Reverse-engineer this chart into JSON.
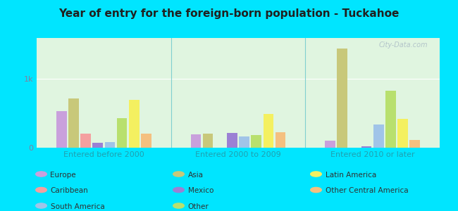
{
  "title": "Year of entry for the foreign-born population - Tuckahoe",
  "groups": [
    "Entered before 2000",
    "Entered 2000 to 2009",
    "Entered 2010 or later"
  ],
  "categories": [
    "Europe",
    "Asia",
    "Caribbean",
    "Mexico",
    "South America",
    "Other",
    "Latin America",
    "Other Central America"
  ],
  "colors": {
    "Europe": "#c9a0dc",
    "Asia": "#c8c87a",
    "Caribbean": "#f4a0a0",
    "Mexico": "#9b80d4",
    "South America": "#a0c4e8",
    "Other": "#b8e06e",
    "Latin America": "#f4f060",
    "Other Central America": "#f4c080"
  },
  "data": {
    "Entered before 2000": {
      "Europe": 530,
      "Asia": 720,
      "Caribbean": 210,
      "Mexico": 70,
      "South America": 80,
      "Other": 430,
      "Latin America": 700,
      "Other Central America": 210
    },
    "Entered 2000 to 2009": {
      "Europe": 195,
      "Asia": 210,
      "Caribbean": 0,
      "Mexico": 215,
      "South America": 160,
      "Other": 185,
      "Latin America": 490,
      "Other Central America": 225
    },
    "Entered 2010 or later": {
      "Europe": 100,
      "Asia": 1450,
      "Caribbean": 0,
      "Mexico": 25,
      "South America": 340,
      "Other": 830,
      "Latin America": 420,
      "Other Central America": 115
    }
  },
  "ylim": [
    0,
    1600
  ],
  "yticks": [
    0,
    1000
  ],
  "ytick_labels": [
    "0",
    "1k"
  ],
  "bg_color": "#e0f5e0",
  "outer_bg": "#00e5ff",
  "watermark": "City-Data.com"
}
